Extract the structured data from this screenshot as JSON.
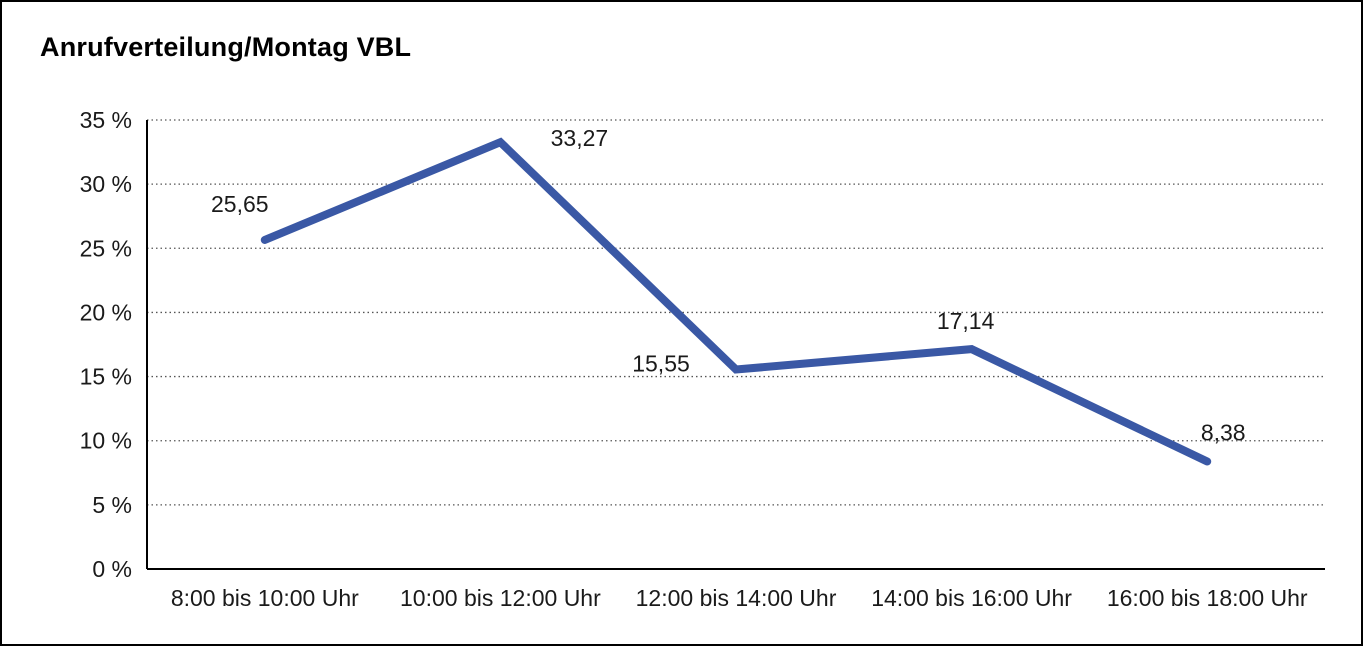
{
  "chart": {
    "title": "Anrufverteilung/Montag VBL"
  },
  "chart_data": {
    "type": "line",
    "title": "Anrufverteilung/Montag VBL",
    "categories": [
      "8:00 bis 10:00 Uhr",
      "10:00 bis 12:00 Uhr",
      "12:00 bis 14:00 Uhr",
      "14:00 bis 16:00 Uhr",
      "16:00 bis 18:00 Uhr"
    ],
    "values": [
      25.65,
      33.27,
      15.55,
      17.14,
      8.38
    ],
    "value_labels": [
      "25,65",
      "33,27",
      "15,55",
      "17,14",
      "8,38"
    ],
    "xlabel": "",
    "ylabel": "",
    "ylim": [
      0,
      35
    ],
    "ytick_step": 5,
    "ytick_labels": [
      "0 %",
      "5 %",
      "10 %",
      "15 %",
      "20 %",
      "25 %",
      "30 %",
      "35 %"
    ],
    "grid": "horizontal-dotted",
    "legend": "none",
    "line_color": "#3A58A5",
    "grid_color": "#555555",
    "axis_color": "#000000",
    "text_color": "#1a1a1a"
  }
}
